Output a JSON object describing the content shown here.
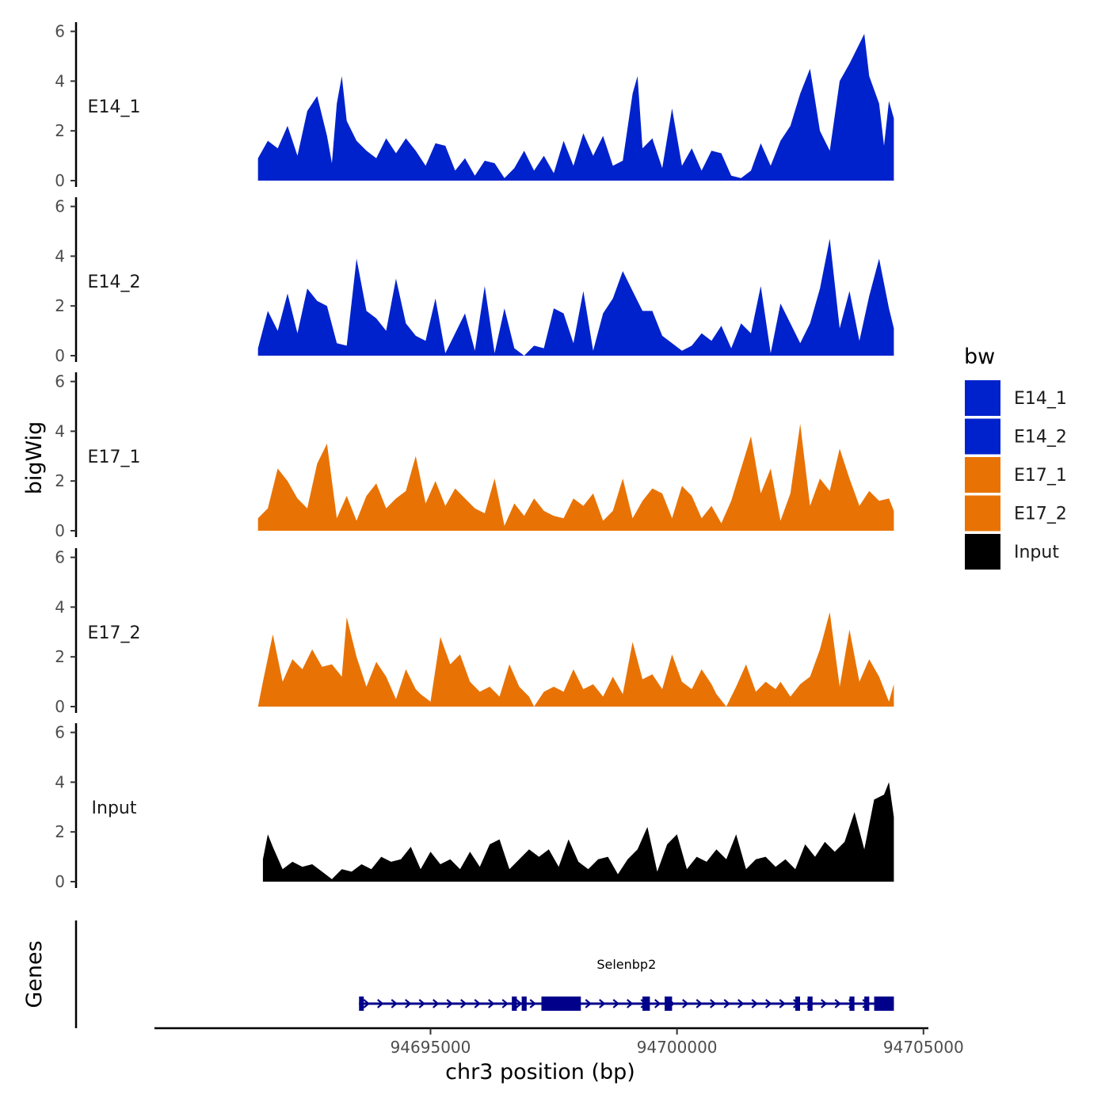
{
  "chart_data": {
    "type": "area",
    "title": "",
    "xlabel": "chr3 position (bp)",
    "ylabel": "bigWig",
    "genes_label": "Genes",
    "xlim": [
      94689400,
      94705100
    ],
    "ylim": [
      0,
      6
    ],
    "x_ticks": [
      94695000,
      94700000,
      94705000
    ],
    "x_tick_labels": [
      "94695000",
      "94700000",
      "94705000"
    ],
    "y_ticks": [
      0,
      2,
      4,
      6
    ],
    "y_tick_labels": [
      "0",
      "2",
      "4",
      "6"
    ],
    "legend": {
      "title": "bw",
      "placement": "right",
      "entries": [
        {
          "label": "E14_1",
          "color": "#0022cc"
        },
        {
          "label": "E14_2",
          "color": "#0022cc"
        },
        {
          "label": "E17_1",
          "color": "#e87304"
        },
        {
          "label": "E17_2",
          "color": "#e87304"
        },
        {
          "label": "Input",
          "color": "#000000"
        }
      ]
    },
    "series": [
      {
        "name": "E14_1",
        "color": "#0022cc",
        "x": [
          94691500,
          94691700,
          94691900,
          94692100,
          94692300,
          94692500,
          94692700,
          94692900,
          94693000,
          94693100,
          94693200,
          94693300,
          94693500,
          94693700,
          94693900,
          94694100,
          94694300,
          94694500,
          94694700,
          94694900,
          94695100,
          94695300,
          94695500,
          94695700,
          94695900,
          94696100,
          94696300,
          94696500,
          94696700,
          94696900,
          94697100,
          94697300,
          94697500,
          94697700,
          94697900,
          94698100,
          94698300,
          94698500,
          94698700,
          94698900,
          94699100,
          94699200,
          94699300,
          94699500,
          94699700,
          94699900,
          94700100,
          94700300,
          94700500,
          94700700,
          94700900,
          94701100,
          94701300,
          94701500,
          94701700,
          94701900,
          94702100,
          94702300,
          94702500,
          94702700,
          94702900,
          94703100,
          94703300,
          94703500,
          94703700,
          94703800,
          94703900,
          94704100,
          94704200,
          94704300,
          94704400
        ],
        "values": [
          0.9,
          1.6,
          1.3,
          2.2,
          1.0,
          2.8,
          3.4,
          1.8,
          0.7,
          3.1,
          4.2,
          2.4,
          1.6,
          1.2,
          0.9,
          1.7,
          1.1,
          1.7,
          1.2,
          0.6,
          1.5,
          1.4,
          0.4,
          0.9,
          0.2,
          0.8,
          0.7,
          0.1,
          0.5,
          1.2,
          0.4,
          1.0,
          0.3,
          1.6,
          0.6,
          1.9,
          1.0,
          1.8,
          0.6,
          0.8,
          3.5,
          4.2,
          1.3,
          1.7,
          0.5,
          2.9,
          0.6,
          1.3,
          0.4,
          1.2,
          1.1,
          0.2,
          0.1,
          0.4,
          1.5,
          0.6,
          1.6,
          2.2,
          3.5,
          4.5,
          2.0,
          1.2,
          4.0,
          4.7,
          5.5,
          5.9,
          4.2,
          3.1,
          1.4,
          3.2,
          2.5
        ]
      },
      {
        "name": "E14_2",
        "color": "#0022cc",
        "x": [
          94691500,
          94691700,
          94691900,
          94692100,
          94692300,
          94692500,
          94692700,
          94692900,
          94693100,
          94693300,
          94693500,
          94693700,
          94693900,
          94694100,
          94694300,
          94694500,
          94694700,
          94694900,
          94695100,
          94695300,
          94695500,
          94695700,
          94695900,
          94696100,
          94696300,
          94696500,
          94696700,
          94696900,
          94697100,
          94697300,
          94697500,
          94697700,
          94697900,
          94698100,
          94698300,
          94698500,
          94698700,
          94698900,
          94699100,
          94699300,
          94699500,
          94699700,
          94699900,
          94700100,
          94700300,
          94700500,
          94700700,
          94700900,
          94701100,
          94701300,
          94701500,
          94701700,
          94701900,
          94702100,
          94702300,
          94702500,
          94702700,
          94702900,
          94703100,
          94703300,
          94703500,
          94703700,
          94703900,
          94704100,
          94704300,
          94704400
        ],
        "values": [
          0.3,
          1.8,
          1.0,
          2.5,
          0.9,
          2.7,
          2.2,
          2.0,
          0.5,
          0.4,
          3.9,
          1.8,
          1.5,
          1.0,
          3.1,
          1.3,
          0.8,
          0.6,
          2.3,
          0.1,
          0.9,
          1.7,
          0.2,
          2.8,
          0.1,
          1.9,
          0.3,
          0.0,
          0.4,
          0.3,
          1.9,
          1.7,
          0.5,
          2.6,
          0.2,
          1.7,
          2.3,
          3.4,
          2.6,
          1.8,
          1.8,
          0.8,
          0.5,
          0.2,
          0.4,
          0.9,
          0.6,
          1.2,
          0.3,
          1.3,
          0.9,
          2.8,
          0.1,
          2.1,
          1.3,
          0.5,
          1.3,
          2.7,
          4.7,
          1.1,
          2.6,
          0.6,
          2.4,
          3.9,
          1.9,
          1.1
        ]
      },
      {
        "name": "E17_1",
        "color": "#e87304",
        "x": [
          94691500,
          94691700,
          94691900,
          94692100,
          94692300,
          94692500,
          94692700,
          94692900,
          94693100,
          94693300,
          94693500,
          94693700,
          94693900,
          94694100,
          94694300,
          94694500,
          94694700,
          94694900,
          94695100,
          94695300,
          94695500,
          94695700,
          94695900,
          94696100,
          94696300,
          94696500,
          94696700,
          94696900,
          94697100,
          94697300,
          94697500,
          94697700,
          94697900,
          94698100,
          94698300,
          94698500,
          94698700,
          94698900,
          94699100,
          94699300,
          94699500,
          94699700,
          94699900,
          94700100,
          94700300,
          94700500,
          94700700,
          94700900,
          94701100,
          94701300,
          94701500,
          94701700,
          94701900,
          94702100,
          94702300,
          94702500,
          94702700,
          94702900,
          94703100,
          94703300,
          94703500,
          94703700,
          94703900,
          94704100,
          94704300,
          94704400
        ],
        "values": [
          0.5,
          0.9,
          2.5,
          2.0,
          1.3,
          0.9,
          2.7,
          3.5,
          0.5,
          1.4,
          0.4,
          1.4,
          1.9,
          0.9,
          1.3,
          1.6,
          3.0,
          1.1,
          2.0,
          1.0,
          1.7,
          1.3,
          0.9,
          0.7,
          2.1,
          0.2,
          1.1,
          0.6,
          1.3,
          0.8,
          0.6,
          0.5,
          1.3,
          1.0,
          1.5,
          0.4,
          0.8,
          2.1,
          0.5,
          1.2,
          1.7,
          1.5,
          0.5,
          1.8,
          1.4,
          0.5,
          1.0,
          0.3,
          1.2,
          2.5,
          3.8,
          1.5,
          2.5,
          0.4,
          1.5,
          4.3,
          1.0,
          2.1,
          1.6,
          3.3,
          2.1,
          1.0,
          1.6,
          1.2,
          1.3,
          0.8
        ]
      },
      {
        "name": "E17_2",
        "color": "#e87304",
        "x": [
          94691500,
          94691600,
          94691800,
          94692000,
          94692200,
          94692400,
          94692600,
          94692800,
          94693000,
          94693200,
          94693300,
          94693500,
          94693700,
          94693900,
          94694100,
          94694300,
          94694500,
          94694700,
          94694800,
          94695000,
          94695200,
          94695400,
          94695600,
          94695800,
          94696000,
          94696200,
          94696400,
          94696600,
          94696800,
          94697000,
          94697100,
          94697300,
          94697500,
          94697700,
          94697900,
          94698100,
          94698300,
          94698500,
          94698700,
          94698900,
          94699100,
          94699300,
          94699500,
          94699700,
          94699900,
          94700100,
          94700300,
          94700500,
          94700700,
          94700800,
          94701000,
          94701200,
          94701400,
          94701600,
          94701800,
          94702000,
          94702100,
          94702300,
          94702500,
          94702700,
          94702900,
          94703100,
          94703300,
          94703500,
          94703700,
          94703900,
          94704100,
          94704300,
          94704400
        ],
        "values": [
          0.0,
          1.0,
          2.9,
          1.0,
          1.9,
          1.5,
          2.3,
          1.6,
          1.7,
          1.2,
          3.6,
          2.0,
          0.8,
          1.8,
          1.2,
          0.3,
          1.5,
          0.7,
          0.5,
          0.2,
          2.8,
          1.7,
          2.1,
          1.0,
          0.6,
          0.8,
          0.4,
          1.7,
          0.8,
          0.4,
          0.0,
          0.6,
          0.8,
          0.6,
          1.5,
          0.7,
          0.9,
          0.4,
          1.2,
          0.5,
          2.6,
          1.1,
          1.3,
          0.7,
          2.1,
          1.0,
          0.7,
          1.5,
          0.9,
          0.5,
          0.0,
          0.8,
          1.7,
          0.6,
          1.0,
          0.7,
          1.0,
          0.4,
          0.9,
          1.2,
          2.3,
          3.8,
          0.8,
          3.1,
          1.0,
          1.9,
          1.2,
          0.2,
          0.9
        ]
      },
      {
        "name": "Input",
        "color": "#000000",
        "x": [
          94691600,
          94691700,
          94691800,
          94692000,
          94692200,
          94692400,
          94692600,
          94692800,
          94693000,
          94693200,
          94693400,
          94693600,
          94693800,
          94694000,
          94694200,
          94694400,
          94694600,
          94694800,
          94695000,
          94695200,
          94695400,
          94695600,
          94695800,
          94696000,
          94696200,
          94696400,
          94696600,
          94696800,
          94697000,
          94697200,
          94697400,
          94697600,
          94697800,
          94698000,
          94698200,
          94698400,
          94698600,
          94698800,
          94699000,
          94699200,
          94699400,
          94699600,
          94699800,
          94700000,
          94700200,
          94700400,
          94700600,
          94700800,
          94701000,
          94701200,
          94701400,
          94701600,
          94701800,
          94702000,
          94702200,
          94702400,
          94702600,
          94702800,
          94703000,
          94703200,
          94703400,
          94703600,
          94703800,
          94704000,
          94704200,
          94704300,
          94704400
        ],
        "values": [
          0.9,
          1.9,
          1.4,
          0.5,
          0.8,
          0.6,
          0.7,
          0.4,
          0.1,
          0.5,
          0.4,
          0.7,
          0.5,
          1.0,
          0.8,
          0.9,
          1.4,
          0.5,
          1.2,
          0.7,
          0.9,
          0.5,
          1.2,
          0.6,
          1.5,
          1.7,
          0.5,
          0.9,
          1.3,
          1.0,
          1.3,
          0.6,
          1.7,
          0.8,
          0.5,
          0.9,
          1.0,
          0.3,
          0.9,
          1.3,
          2.2,
          0.4,
          1.5,
          1.9,
          0.5,
          1.0,
          0.8,
          1.3,
          0.9,
          1.9,
          0.5,
          0.9,
          1.0,
          0.6,
          0.9,
          0.5,
          1.5,
          1.0,
          1.6,
          1.2,
          1.6,
          2.8,
          1.3,
          3.3,
          3.5,
          4.0,
          2.6
        ]
      }
    ],
    "gene": {
      "name": "Selenbp2",
      "start": 94693550,
      "end": 94704400,
      "strand": "+",
      "color": "#00008b",
      "exons": [
        [
          94693550,
          94693600
        ],
        [
          94696650,
          94696750
        ],
        [
          94696850,
          94696950
        ],
        [
          94697250,
          94698050
        ],
        [
          94699300,
          94699450
        ],
        [
          94699750,
          94699900
        ],
        [
          94702400,
          94702450
        ],
        [
          94702650,
          94702750
        ],
        [
          94703500,
          94703600
        ],
        [
          94703800,
          94703900
        ],
        [
          94704000,
          94704400
        ]
      ]
    }
  }
}
